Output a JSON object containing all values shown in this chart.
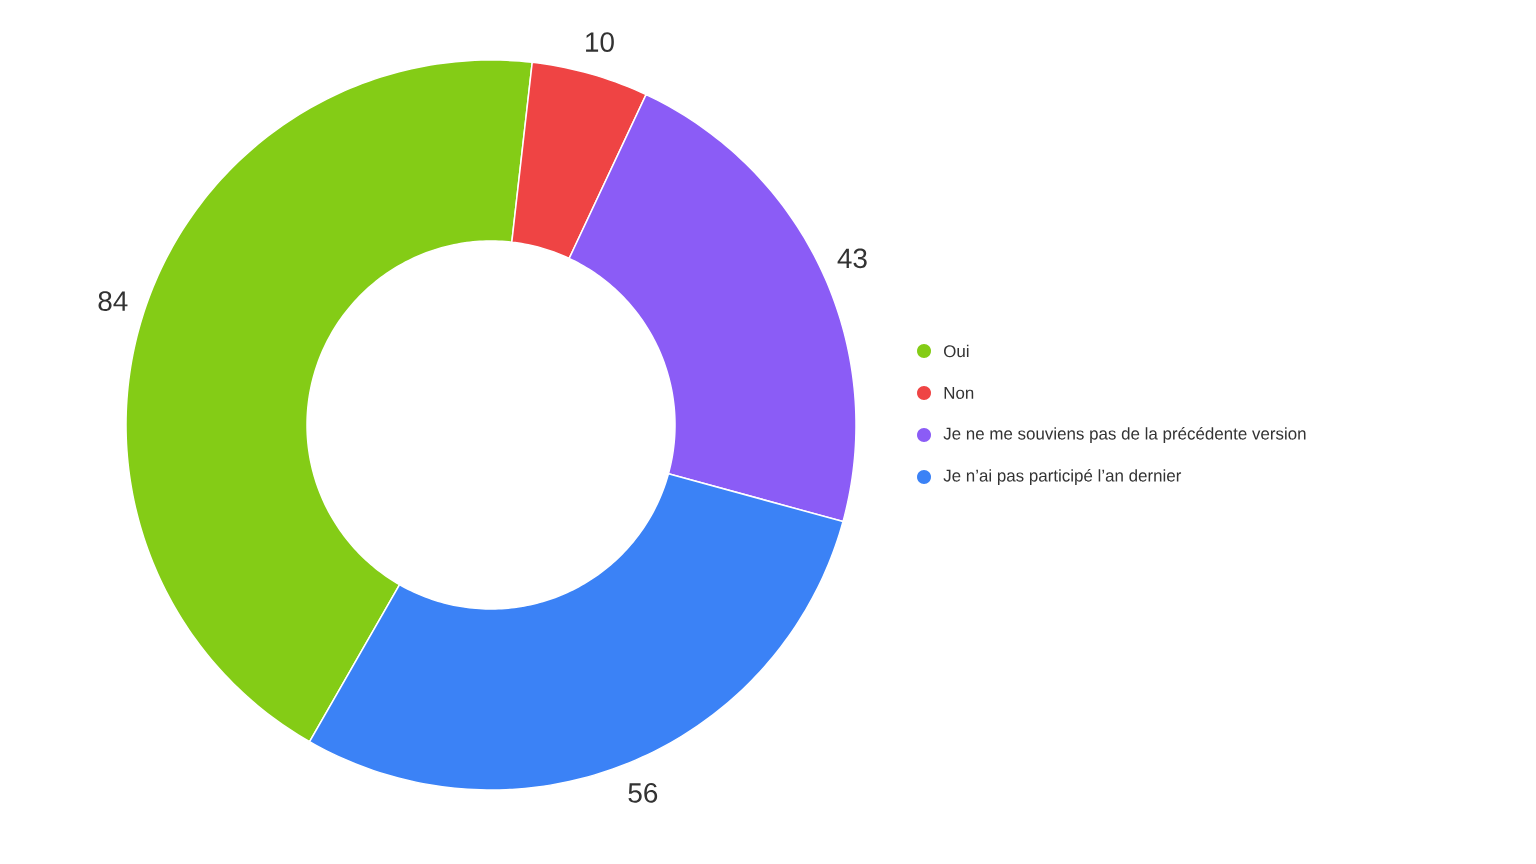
{
  "chart_data": {
    "type": "donut",
    "categories": [
      "Oui",
      "Non",
      "Je ne me souviens pas de la précédente version",
      "Je n’ai pas participé l’an dernier"
    ],
    "values": [
      84,
      10,
      43,
      56
    ],
    "colors": [
      "#84cc16",
      "#ef4444",
      "#8b5cf6",
      "#3b82f6"
    ],
    "data_labels": true,
    "legend": "right"
  }
}
